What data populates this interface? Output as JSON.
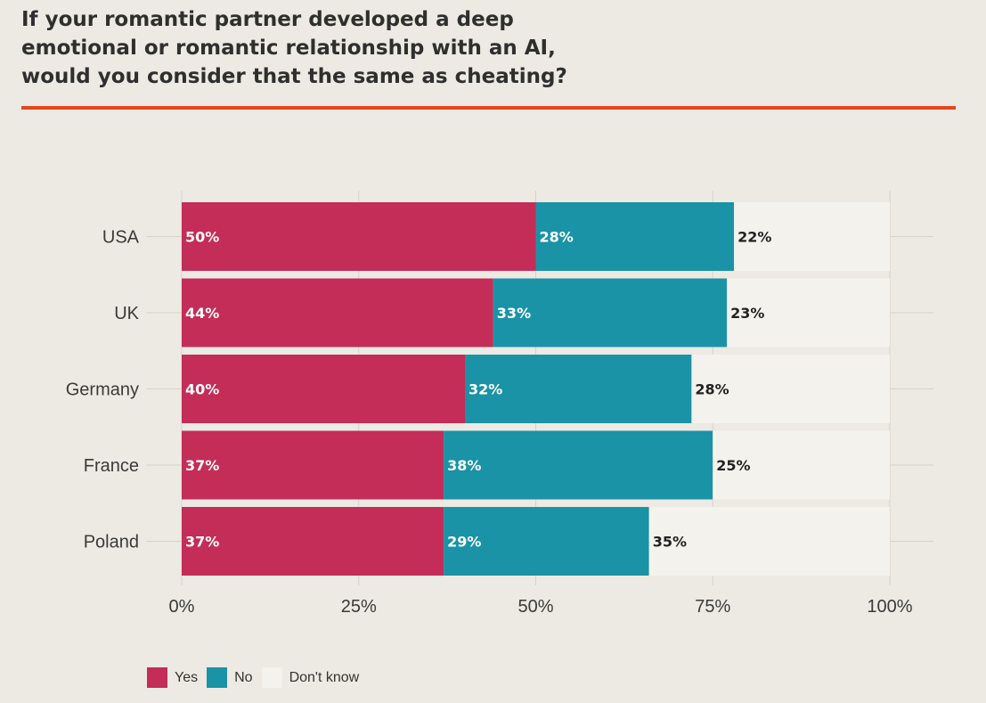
{
  "title_lines": [
    "If your romantic partner developed a deep",
    "emotional or romantic relationship with an AI,",
    "would you consider that the same as cheating?"
  ],
  "colors": {
    "accent_rule": "#E5461F",
    "yes": "#C42D57",
    "no": "#1A93A6",
    "dont_know": "#F3F2EC",
    "grid": "#D6D3C9",
    "axis_text": "#3a3a3a"
  },
  "chart_data": {
    "type": "bar",
    "orientation": "horizontal",
    "stacked": true,
    "categories": [
      "USA",
      "UK",
      "Germany",
      "France",
      "Poland"
    ],
    "series": [
      {
        "name": "Yes",
        "values": [
          50,
          44,
          40,
          37,
          37
        ],
        "labels": [
          "50%",
          "44%",
          "40%",
          "37%",
          "37%"
        ]
      },
      {
        "name": "No",
        "values": [
          28,
          33,
          32,
          38,
          29
        ],
        "labels": [
          "28%",
          "33%",
          "32%",
          "38%",
          "29%"
        ]
      },
      {
        "name": "Don't know",
        "values": [
          22,
          23,
          28,
          25,
          35
        ],
        "labels": [
          "22%",
          "23%",
          "28%",
          "25%",
          "35%"
        ]
      }
    ],
    "xlim": [
      0,
      100
    ],
    "xticks": [
      0,
      25,
      50,
      75,
      100
    ],
    "xtick_labels": [
      "0%",
      "25%",
      "50%",
      "75%",
      "100%"
    ],
    "xlabel": "",
    "ylabel": "",
    "grid": true,
    "legend_position": "bottom-left"
  },
  "legend": {
    "items": [
      "Yes",
      "No",
      "Don't know"
    ]
  }
}
